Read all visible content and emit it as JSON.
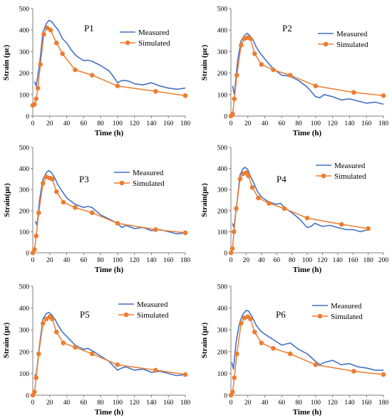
{
  "colors": {
    "measured": "#4472C4",
    "simulated": "#ED7D31",
    "axis": "#7f7f7f"
  },
  "chart_data": [
    {
      "type": "line",
      "title": "P1",
      "xlabel": "Time (h)",
      "ylabel": "Strain (με)",
      "xlim": [
        0,
        180
      ],
      "ylim": [
        0,
        500
      ],
      "xticks": [
        0,
        20,
        40,
        60,
        80,
        100,
        120,
        140,
        160,
        180
      ],
      "yticks": [
        0,
        100,
        200,
        300,
        400,
        500
      ],
      "legend": "top-right",
      "grid": false,
      "series": [
        {
          "name": "Measured",
          "x": [
            2,
            4,
            8,
            12,
            16,
            19,
            22,
            26,
            30,
            35,
            40,
            45,
            50,
            55,
            60,
            65,
            70,
            80,
            90,
            95,
            100,
            105,
            110,
            115,
            120,
            130,
            140,
            150,
            160,
            170,
            180
          ],
          "y": [
            160,
            140,
            240,
            390,
            430,
            445,
            440,
            420,
            400,
            360,
            340,
            310,
            285,
            270,
            258,
            260,
            255,
            235,
            210,
            185,
            155,
            165,
            165,
            160,
            150,
            145,
            155,
            140,
            130,
            125,
            130
          ]
        },
        {
          "name": "Simulated",
          "x": [
            0,
            2,
            4,
            6,
            9,
            13,
            17,
            21,
            28,
            35,
            50,
            70,
            100,
            145,
            180
          ],
          "y": [
            50,
            55,
            80,
            130,
            240,
            380,
            410,
            400,
            340,
            290,
            215,
            190,
            140,
            115,
            95
          ]
        }
      ]
    },
    {
      "type": "line",
      "title": "P2",
      "xlabel": "Time (h)",
      "ylabel": "Strain (με)",
      "xlim": [
        0,
        180
      ],
      "ylim": [
        0,
        500
      ],
      "xticks": [
        0,
        20,
        40,
        60,
        80,
        100,
        120,
        140,
        160,
        180
      ],
      "yticks": [
        0,
        100,
        200,
        300,
        400,
        500
      ],
      "legend": "top-right",
      "grid": false,
      "series": [
        {
          "name": "Measured",
          "x": [
            2,
            4,
            8,
            12,
            16,
            19,
            22,
            26,
            30,
            35,
            40,
            50,
            60,
            70,
            80,
            90,
            100,
            105,
            110,
            120,
            130,
            140,
            150,
            160,
            170,
            180
          ],
          "y": [
            140,
            100,
            260,
            350,
            375,
            385,
            375,
            355,
            320,
            290,
            265,
            220,
            190,
            185,
            165,
            135,
            90,
            85,
            100,
            90,
            75,
            80,
            70,
            60,
            65,
            55
          ]
        },
        {
          "name": "Simulated",
          "x": [
            0,
            2,
            4,
            7,
            12,
            16,
            20,
            23,
            28,
            36,
            50,
            70,
            100,
            145,
            180
          ],
          "y": [
            0,
            10,
            80,
            190,
            330,
            360,
            365,
            360,
            290,
            240,
            215,
            190,
            140,
            110,
            95
          ]
        }
      ]
    },
    {
      "type": "line",
      "title": "P3",
      "xlabel": "Time (h)",
      "ylabel": "Strain(με)",
      "xlim": [
        0,
        180
      ],
      "ylim": [
        0,
        500
      ],
      "xticks": [
        0,
        20,
        40,
        60,
        80,
        100,
        120,
        140,
        160,
        180
      ],
      "yticks": [
        0,
        100,
        200,
        300,
        400,
        500
      ],
      "legend": "top-right",
      "grid": false,
      "series": [
        {
          "name": "Measured",
          "x": [
            3,
            5,
            8,
            12,
            16,
            19,
            22,
            26,
            30,
            35,
            40,
            50,
            60,
            65,
            70,
            80,
            90,
            100,
            105,
            110,
            120,
            130,
            140,
            150,
            160,
            170,
            180
          ],
          "y": [
            150,
            130,
            250,
            350,
            380,
            390,
            380,
            355,
            320,
            290,
            260,
            230,
            215,
            220,
            215,
            180,
            160,
            140,
            120,
            130,
            115,
            120,
            105,
            110,
            100,
            90,
            95
          ]
        },
        {
          "name": "Simulated",
          "x": [
            0,
            2,
            4,
            7,
            12,
            16,
            20,
            23,
            28,
            36,
            50,
            70,
            100,
            145,
            180
          ],
          "y": [
            0,
            15,
            80,
            190,
            330,
            360,
            355,
            350,
            290,
            240,
            215,
            190,
            140,
            110,
            95
          ]
        }
      ]
    },
    {
      "type": "line",
      "title": "P4",
      "xlabel": "Time (h)",
      "ylabel": "Strain(με)",
      "xlim": [
        0,
        200
      ],
      "ylim": [
        0,
        500
      ],
      "xticks": [
        0,
        20,
        40,
        60,
        80,
        100,
        120,
        140,
        160,
        180,
        200
      ],
      "yticks": [
        0,
        100,
        200,
        300,
        400,
        500
      ],
      "legend": "top-right",
      "grid": false,
      "series": [
        {
          "name": "Measured",
          "x": [
            2,
            4,
            8,
            12,
            16,
            19,
            22,
            26,
            30,
            35,
            40,
            50,
            60,
            65,
            70,
            80,
            90,
            100,
            105,
            110,
            120,
            130,
            140,
            150,
            160,
            170,
            180
          ],
          "y": [
            140,
            120,
            240,
            370,
            400,
            405,
            395,
            360,
            330,
            290,
            265,
            240,
            230,
            235,
            215,
            190,
            160,
            120,
            125,
            140,
            125,
            130,
            120,
            110,
            110,
            100,
            110
          ]
        },
        {
          "name": "Simulated",
          "x": [
            0,
            2,
            4,
            7,
            12,
            16,
            20,
            23,
            28,
            36,
            50,
            70,
            100,
            145,
            180
          ],
          "y": [
            0,
            20,
            100,
            210,
            350,
            375,
            380,
            365,
            310,
            260,
            235,
            210,
            165,
            135,
            115
          ]
        }
      ]
    },
    {
      "type": "line",
      "title": "P5",
      "xlabel": "Time (h)",
      "ylabel": "Strain (με)",
      "xlim": [
        0,
        180
      ],
      "ylim": [
        0,
        500
      ],
      "xticks": [
        0,
        20,
        40,
        60,
        80,
        100,
        120,
        140,
        160,
        180
      ],
      "yticks": [
        0,
        100,
        200,
        300,
        400,
        500
      ],
      "legend": "top-right",
      "grid": false,
      "series": [
        {
          "name": "Measured",
          "x": [
            2,
            4,
            8,
            12,
            16,
            19,
            22,
            26,
            30,
            35,
            40,
            50,
            60,
            65,
            70,
            80,
            90,
            100,
            105,
            110,
            120,
            130,
            140,
            150,
            160,
            170,
            180
          ],
          "y": [
            95,
            90,
            230,
            350,
            375,
            380,
            370,
            350,
            320,
            290,
            270,
            230,
            210,
            215,
            205,
            180,
            155,
            115,
            125,
            130,
            115,
            120,
            105,
            110,
            100,
            90,
            95
          ]
        },
        {
          "name": "Simulated",
          "x": [
            0,
            2,
            4,
            7,
            12,
            16,
            20,
            23,
            28,
            36,
            50,
            70,
            100,
            145,
            180
          ],
          "y": [
            0,
            15,
            80,
            190,
            330,
            350,
            360,
            350,
            290,
            240,
            220,
            190,
            140,
            115,
            95
          ]
        }
      ]
    },
    {
      "type": "line",
      "title": "P6",
      "xlabel": "Time (h)",
      "ylabel": "Strain (με)",
      "xlim": [
        0,
        180
      ],
      "ylim": [
        0,
        500
      ],
      "xticks": [
        0,
        20,
        40,
        60,
        80,
        100,
        120,
        140,
        160,
        180
      ],
      "yticks": [
        0,
        100,
        200,
        300,
        400,
        500
      ],
      "legend": "top-right",
      "grid": false,
      "series": [
        {
          "name": "Measured",
          "x": [
            1,
            3,
            6,
            10,
            14,
            18,
            21,
            25,
            30,
            35,
            40,
            50,
            60,
            70,
            80,
            90,
            100,
            105,
            110,
            120,
            130,
            140,
            150,
            160,
            170,
            180
          ],
          "y": [
            150,
            120,
            240,
            330,
            370,
            390,
            385,
            360,
            320,
            295,
            280,
            255,
            230,
            240,
            210,
            190,
            155,
            140,
            150,
            160,
            140,
            145,
            130,
            125,
            115,
            115
          ]
        },
        {
          "name": "Simulated",
          "x": [
            0,
            2,
            4,
            7,
            12,
            16,
            20,
            23,
            28,
            36,
            50,
            70,
            100,
            145,
            180
          ],
          "y": [
            0,
            15,
            80,
            190,
            330,
            355,
            360,
            350,
            290,
            240,
            215,
            190,
            140,
            110,
            95
          ]
        }
      ]
    }
  ]
}
